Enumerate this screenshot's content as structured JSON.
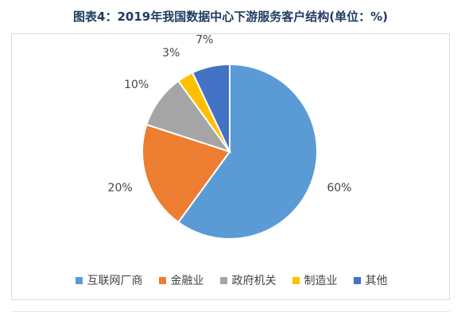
{
  "title": "图表4：2019年我国数据中心下游服务客户结构(单位：%)",
  "chart_data": {
    "type": "pie",
    "title": "图表4：2019年我国数据中心下游服务客户结构(单位：%)",
    "categories": [
      "互联网厂商",
      "金融业",
      "政府机关",
      "制造业",
      "其他"
    ],
    "values": [
      60,
      20,
      10,
      3,
      7
    ],
    "labels": [
      "60%",
      "20%",
      "10%",
      "3%",
      "7%"
    ],
    "colors": [
      "#5b9bd5",
      "#ed7d31",
      "#a5a5a5",
      "#ffc000",
      "#4472c4"
    ],
    "legend_position": "bottom"
  }
}
